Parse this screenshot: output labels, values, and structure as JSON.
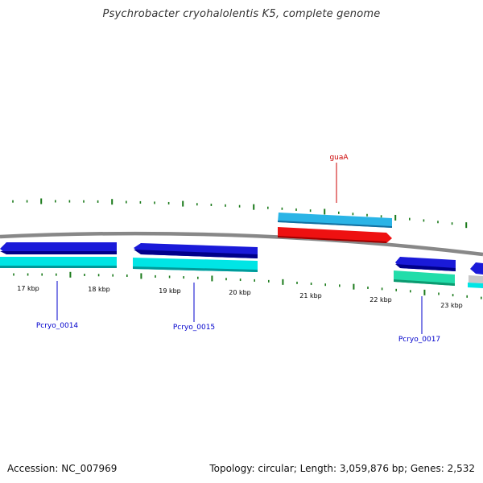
{
  "title": "Psychrobacter cryohalolentis K5, complete genome",
  "footer": {
    "accession": "Accession: NC_007969",
    "summary": "Topology: circular; Length: 3,059,876 bp; Genes: 2,532"
  },
  "colors": {
    "backbone": "#888888",
    "tick": "#1a7a1a",
    "cds_dark": "#1a1ad9",
    "cds_light": "#00e5e5",
    "cds_sky": "#2ab4e6",
    "rna_red": "#ee1111",
    "cds_mint": "#22ddaa",
    "gene_label_blue": "#0000cc",
    "gene_label_red": "#cc0000"
  },
  "axis": {
    "ticks": [
      "17 kbp",
      "18 kbp",
      "19 kbp",
      "20 kbp",
      "21 kbp",
      "22 kbp",
      "23 kbp"
    ]
  },
  "gene_labels": [
    {
      "id": "Pcryo_0014",
      "text": "Pcryo_0014",
      "color": "blue"
    },
    {
      "id": "Pcryo_0015",
      "text": "Pcryo_0015",
      "color": "blue"
    },
    {
      "id": "guaA",
      "text": "guaA",
      "color": "red"
    },
    {
      "id": "Pcryo_0017",
      "text": "Pcryo_0017",
      "color": "blue"
    }
  ]
}
